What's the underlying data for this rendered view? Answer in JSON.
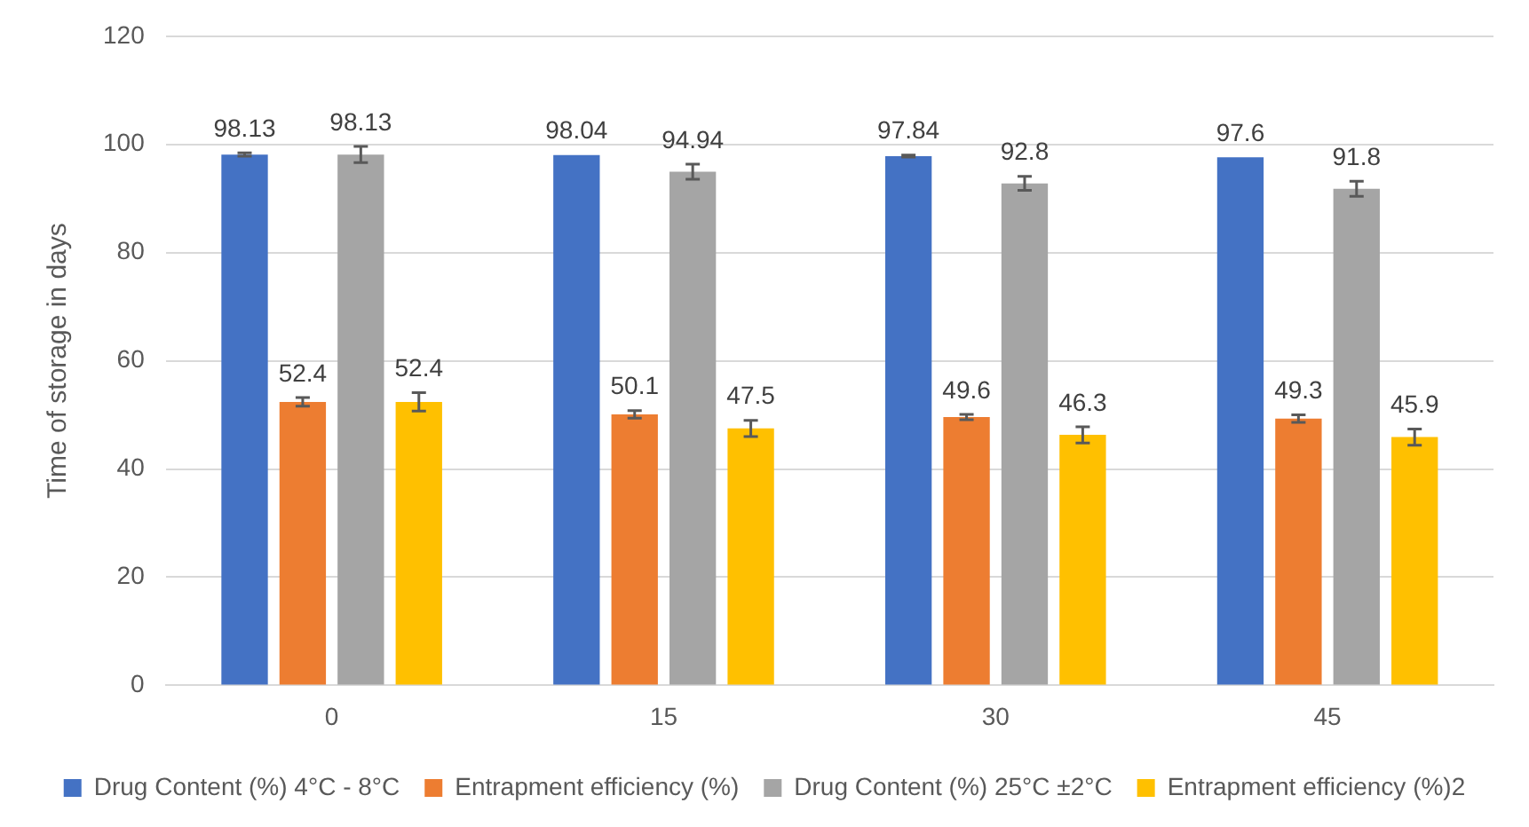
{
  "chart_data": {
    "type": "bar",
    "ylabel": "Time of storage in days",
    "categories": [
      "0",
      "15",
      "30",
      "45"
    ],
    "series": [
      {
        "name": "Drug Content (%) 4°C - 8°C",
        "color": "#4472c4",
        "values": [
          98.13,
          98.04,
          97.84,
          97.6
        ],
        "errors": [
          0.3,
          null,
          0.2,
          null
        ]
      },
      {
        "name": "Entrapment efficiency (%)",
        "color": "#ed7d31",
        "values": [
          52.4,
          50.1,
          49.6,
          49.3
        ],
        "errors": [
          0.8,
          0.7,
          0.5,
          0.7
        ]
      },
      {
        "name": "Drug Content (%) 25°C ±2°C",
        "color": "#a5a5a5",
        "values": [
          98.13,
          94.94,
          92.8,
          91.8
        ],
        "errors": [
          1.5,
          1.4,
          1.3,
          1.4
        ]
      },
      {
        "name": "Entrapment efficiency (%)2",
        "color": "#ffc000",
        "values": [
          52.4,
          47.5,
          46.3,
          45.9
        ],
        "errors": [
          1.7,
          1.5,
          1.5,
          1.5
        ]
      }
    ],
    "ylim": [
      0,
      120
    ],
    "yticks": [
      0,
      20,
      40,
      60,
      80,
      100,
      120
    ],
    "grid": "y",
    "legend": "bottom",
    "data_labels": true
  }
}
